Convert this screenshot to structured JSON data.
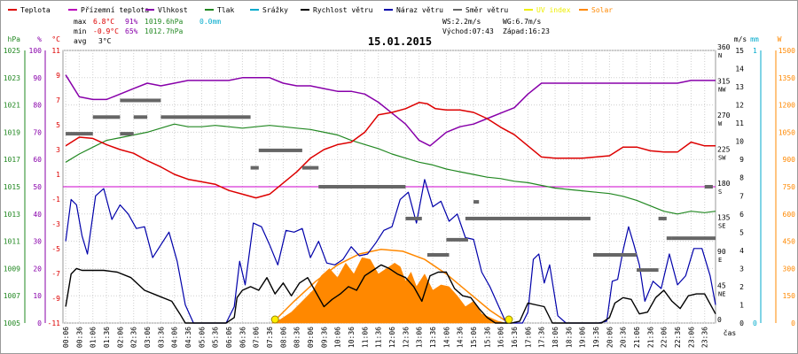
{
  "chart_data": {
    "type": "line",
    "title": "15.01.2015",
    "xlabel": "čas",
    "legend": [
      {
        "label": "Teplota",
        "color": "#dd0000"
      },
      {
        "label": "Přízemní teplota",
        "color": "#bb00bb"
      },
      {
        "label": "Vlhkost",
        "color": "#8800aa"
      },
      {
        "label": "Tlak",
        "color": "#228822"
      },
      {
        "label": "Srážky",
        "color": "#00aacc"
      },
      {
        "label": "Rychlost větru",
        "color": "#000000"
      },
      {
        "label": "Náraz větru",
        "color": "#0000aa"
      },
      {
        "label": "Směr větru",
        "color": "#666666"
      },
      {
        "label": "UV index",
        "color": "#eeee00"
      },
      {
        "label": "Solar",
        "color": "#ff8800"
      }
    ],
    "stats": {
      "max": {
        "label": "max",
        "temp": "6.8°C",
        "hum": "91%",
        "press": "1019.6hPa",
        "rain": "0.0mm"
      },
      "min": {
        "label": "min",
        "temp": "-0.9°C",
        "hum": "65%",
        "press": "1012.7hPa"
      },
      "avg": {
        "label": "avg",
        "temp": "3°C"
      },
      "ws": "WS:2.2m/s",
      "wg": "WG:6.7m/s",
      "sunrise": "Východ:07:43",
      "sunset": "Západ:16:23"
    },
    "axes": {
      "hpa": {
        "unit": "hPa",
        "ticks": [
          "1005",
          "1007",
          "1009",
          "1011",
          "1013",
          "1015",
          "1017",
          "1019",
          "1021",
          "1023",
          "1025"
        ],
        "ylim": [
          1005,
          1025
        ]
      },
      "percent": {
        "unit": "%",
        "ticks": [
          "0",
          "10",
          "20",
          "30",
          "40",
          "50",
          "60",
          "70",
          "80",
          "90",
          "100"
        ],
        "ylim": [
          0,
          100
        ]
      },
      "temp": {
        "unit": "°C",
        "ticks": [
          "-11",
          "-9",
          "-7",
          "-5",
          "-3",
          "-1",
          "1",
          "3",
          "5",
          "7",
          "9",
          "11"
        ],
        "ylim": [
          -11,
          11
        ]
      },
      "dir": {
        "unit": "°",
        "ticks": [
          {
            "deg": "0",
            "c": ""
          },
          {
            "deg": "45",
            "c": "NE"
          },
          {
            "deg": "90",
            "c": "E"
          },
          {
            "deg": "135",
            "c": "SE"
          },
          {
            "deg": "180",
            "c": "S"
          },
          {
            "deg": "225",
            "c": "SW"
          },
          {
            "deg": "270",
            "c": "W"
          },
          {
            "deg": "315",
            "c": "NW"
          },
          {
            "deg": "360",
            "c": "N"
          }
        ],
        "ylim": [
          0,
          360
        ]
      },
      "ms": {
        "unit": "m/s",
        "ticks": [
          "0",
          "1",
          "2",
          "3",
          "4",
          "5",
          "6",
          "7",
          "8",
          "9",
          "10",
          "11",
          "12",
          "13",
          "14",
          "15"
        ],
        "ylim": [
          0,
          15
        ]
      },
      "mm": {
        "unit": "mm",
        "ticks": [
          "0",
          "1"
        ],
        "ylim": [
          0,
          1
        ]
      },
      "w": {
        "unit": "W",
        "ticks": [
          "0",
          "150",
          "300",
          "450",
          "600",
          "750",
          "900",
          "1050",
          "1200",
          "1350",
          "1500"
        ],
        "ylim": [
          0,
          1500
        ]
      }
    },
    "x_ticks": [
      "00:06",
      "00:36",
      "01:06",
      "01:36",
      "02:06",
      "02:36",
      "03:06",
      "03:36",
      "04:06",
      "04:36",
      "05:06",
      "05:36",
      "06:06",
      "06:36",
      "07:06",
      "07:36",
      "08:06",
      "08:36",
      "09:06",
      "09:36",
      "10:06",
      "10:36",
      "11:06",
      "11:36",
      "12:06",
      "12:36",
      "13:06",
      "13:36",
      "14:06",
      "14:36",
      "15:06",
      "15:36",
      "16:06",
      "16:36",
      "17:06",
      "17:36",
      "18:06",
      "18:36",
      "19:06",
      "19:36",
      "20:06",
      "20:36",
      "21:06",
      "21:36",
      "22:06",
      "22:36",
      "23:06",
      "23:36"
    ],
    "series": [
      {
        "name": "Teplota",
        "unit": "°C",
        "x": [
          0.1,
          0.6,
          1.1,
          1.6,
          2.1,
          2.6,
          3.1,
          3.6,
          4.1,
          4.6,
          5.1,
          5.6,
          6.1,
          6.6,
          7.1,
          7.6,
          8.1,
          8.6,
          9.1,
          9.6,
          10.1,
          10.6,
          11.1,
          11.6,
          12.1,
          12.6,
          13.1,
          13.4,
          13.7,
          14.1,
          14.6,
          15.1,
          15.6,
          16.1,
          16.6,
          17.1,
          17.6,
          18.1,
          18.6,
          19.1,
          19.6,
          20.1,
          20.6,
          21.1,
          21.6,
          22.1,
          22.6,
          23.1,
          23.6,
          24.0
        ],
        "values": [
          3.3,
          4.0,
          3.9,
          3.4,
          3.0,
          2.7,
          2.1,
          1.6,
          1.0,
          0.6,
          0.4,
          0.2,
          -0.3,
          -0.6,
          -0.9,
          -0.6,
          0.3,
          1.2,
          2.3,
          3.0,
          3.4,
          3.6,
          4.4,
          5.8,
          6.0,
          6.3,
          6.8,
          6.7,
          6.3,
          6.2,
          6.2,
          6.0,
          5.5,
          4.8,
          4.2,
          3.3,
          2.4,
          2.3,
          2.3,
          2.3,
          2.4,
          2.5,
          3.2,
          3.2,
          2.9,
          2.8,
          2.8,
          3.6,
          3.3,
          3.3
        ]
      },
      {
        "name": "Přízemní teplota",
        "unit": "°C",
        "x": [
          0,
          24
        ],
        "values": [
          0,
          0
        ]
      },
      {
        "name": "Vlhkost",
        "unit": "%",
        "x": [
          0.1,
          0.6,
          1.1,
          1.6,
          2.1,
          2.6,
          3.1,
          3.6,
          4.1,
          4.6,
          5.1,
          5.6,
          6.1,
          6.6,
          7.1,
          7.6,
          8.1,
          8.6,
          9.1,
          9.6,
          10.1,
          10.6,
          11.1,
          11.6,
          12.1,
          12.6,
          13.1,
          13.5,
          14.1,
          14.6,
          15.1,
          15.6,
          16.1,
          16.6,
          17.1,
          17.6,
          18.1,
          18.6,
          19.1,
          19.6,
          20.1,
          20.6,
          21.1,
          21.6,
          22.1,
          22.6,
          23.1,
          23.6,
          24.0
        ],
        "values": [
          91,
          83,
          82,
          82,
          84,
          86,
          88,
          87,
          88,
          89,
          89,
          89,
          89,
          90,
          90,
          90,
          88,
          87,
          87,
          86,
          85,
          85,
          84,
          81,
          77,
          73,
          67,
          65,
          70,
          72,
          73,
          75,
          77,
          79,
          84,
          88,
          88,
          88,
          88,
          88,
          88,
          88,
          88,
          88,
          88,
          88,
          89,
          89,
          89
        ]
      },
      {
        "name": "Tlak",
        "unit": "hPa",
        "x": [
          0.1,
          0.6,
          1.1,
          1.6,
          2.1,
          2.6,
          3.1,
          3.6,
          4.1,
          4.6,
          5.1,
          5.6,
          6.1,
          6.6,
          7.1,
          7.6,
          8.1,
          8.6,
          9.1,
          9.6,
          10.1,
          10.6,
          11.1,
          11.6,
          12.1,
          12.6,
          13.1,
          13.6,
          14.1,
          14.6,
          15.1,
          15.6,
          16.1,
          16.6,
          17.1,
          17.6,
          18.1,
          18.6,
          19.1,
          19.6,
          20.1,
          20.6,
          21.1,
          21.6,
          22.1,
          22.6,
          23.1,
          23.6,
          24.0
        ],
        "values": [
          1016.8,
          1017.4,
          1017.9,
          1018.4,
          1018.6,
          1018.8,
          1019.0,
          1019.3,
          1019.6,
          1019.4,
          1019.4,
          1019.5,
          1019.4,
          1019.3,
          1019.4,
          1019.5,
          1019.4,
          1019.3,
          1019.2,
          1019.0,
          1018.8,
          1018.4,
          1018.1,
          1017.8,
          1017.4,
          1017.1,
          1016.8,
          1016.6,
          1016.3,
          1016.1,
          1015.9,
          1015.7,
          1015.6,
          1015.4,
          1015.3,
          1015.1,
          1014.9,
          1014.8,
          1014.7,
          1014.6,
          1014.5,
          1014.3,
          1014.0,
          1013.6,
          1013.2,
          1013.0,
          1013.2,
          1013.1,
          1013.2
        ]
      },
      {
        "name": "Srážky",
        "unit": "mm",
        "x": [
          0,
          24
        ],
        "values": [
          0,
          0
        ]
      },
      {
        "name": "Rychlost větru",
        "unit": "m/s",
        "x": [
          0.1,
          0.3,
          0.5,
          0.7,
          1.0,
          1.5,
          2.0,
          2.5,
          3.0,
          3.5,
          4.0,
          4.3,
          4.5,
          5.0,
          5.5,
          6.0,
          6.3,
          6.4,
          6.6,
          6.9,
          7.2,
          7.5,
          7.8,
          8.1,
          8.4,
          8.7,
          9.0,
          9.3,
          9.6,
          9.9,
          10.2,
          10.5,
          10.8,
          11.1,
          11.4,
          11.7,
          12.0,
          12.3,
          12.6,
          12.9,
          13.2,
          13.5,
          13.8,
          14.1,
          14.4,
          14.7,
          15.0,
          15.3,
          15.6,
          15.9,
          16.2,
          16.5,
          16.8,
          17.1,
          17.4,
          17.7,
          18.0,
          18.3,
          18.6,
          18.9,
          19.2,
          19.5,
          19.8,
          20.1,
          20.3,
          20.6,
          20.9,
          21.2,
          21.5,
          21.8,
          22.1,
          22.4,
          22.7,
          23.0,
          23.3,
          23.6,
          24.0
        ],
        "values": [
          0.9,
          2.7,
          3.0,
          2.9,
          2.9,
          2.9,
          2.8,
          2.5,
          1.8,
          1.5,
          1.2,
          0.5,
          0.0,
          0.0,
          0.0,
          0.0,
          0.3,
          1.4,
          1.8,
          2.0,
          1.8,
          2.5,
          1.6,
          2.2,
          1.5,
          2.2,
          2.5,
          1.7,
          0.9,
          1.3,
          1.6,
          2.0,
          1.8,
          2.6,
          2.9,
          3.2,
          3.0,
          2.7,
          2.5,
          2.0,
          1.2,
          2.6,
          2.8,
          2.8,
          1.9,
          1.5,
          1.4,
          0.8,
          0.3,
          0.0,
          0.0,
          0.0,
          0.1,
          1.1,
          1.0,
          0.9,
          0.0,
          0.0,
          0.0,
          0.0,
          0.0,
          0.0,
          0.0,
          0.3,
          1.1,
          1.4,
          1.3,
          0.5,
          0.6,
          1.4,
          1.8,
          1.2,
          0.8,
          1.5,
          1.6,
          1.6,
          0.5
        ]
      },
      {
        "name": "Náraz větru",
        "unit": "m/s",
        "x": [
          0.1,
          0.3,
          0.5,
          0.7,
          0.9,
          1.2,
          1.5,
          1.8,
          2.1,
          2.4,
          2.7,
          3.0,
          3.3,
          3.6,
          3.9,
          4.2,
          4.5,
          4.8,
          5.5,
          6.0,
          6.3,
          6.5,
          6.7,
          7.0,
          7.3,
          7.6,
          7.9,
          8.2,
          8.5,
          8.8,
          9.1,
          9.4,
          9.7,
          10.0,
          10.3,
          10.6,
          10.9,
          11.2,
          11.5,
          11.8,
          12.1,
          12.4,
          12.7,
          13.0,
          13.3,
          13.6,
          13.9,
          14.2,
          14.5,
          14.8,
          15.1,
          15.4,
          15.7,
          16.0,
          16.3,
          16.6,
          16.9,
          17.1,
          17.3,
          17.5,
          17.7,
          17.9,
          18.2,
          18.5,
          18.8,
          19.1,
          19.4,
          19.7,
          20.0,
          20.2,
          20.4,
          20.6,
          20.8,
          21.0,
          21.2,
          21.4,
          21.7,
          22.0,
          22.3,
          22.6,
          22.9,
          23.2,
          23.5,
          23.8,
          24.0
        ],
        "values": [
          4.5,
          6.8,
          6.5,
          4.8,
          3.8,
          7.0,
          7.4,
          5.7,
          6.5,
          6.0,
          5.2,
          5.3,
          3.6,
          4.3,
          5.0,
          3.4,
          1.0,
          0.0,
          0.0,
          0.0,
          0.9,
          3.4,
          2.1,
          5.5,
          5.3,
          4.3,
          3.2,
          5.1,
          5.0,
          5.2,
          3.6,
          4.5,
          3.3,
          3.2,
          3.5,
          4.2,
          3.7,
          3.8,
          4.4,
          5.1,
          5.3,
          6.8,
          7.2,
          5.5,
          7.9,
          6.4,
          6.7,
          5.6,
          6.0,
          4.7,
          4.6,
          2.8,
          2.0,
          1.0,
          0.0,
          0.0,
          0.0,
          0.6,
          3.5,
          3.8,
          2.2,
          3.2,
          0.4,
          0.0,
          0.0,
          0.0,
          0.0,
          0.0,
          0.1,
          2.3,
          2.4,
          4.0,
          5.3,
          4.3,
          3.2,
          1.2,
          2.3,
          1.9,
          3.8,
          2.1,
          2.6,
          4.1,
          4.1,
          2.6,
          1.0
        ]
      },
      {
        "name": "Směr větru",
        "unit": "°",
        "segments": [
          {
            "x0": 0.1,
            "x1": 1.1,
            "v": 250
          },
          {
            "x0": 1.1,
            "x1": 2.1,
            "v": 272
          },
          {
            "x0": 2.1,
            "x1": 3.6,
            "v": 294
          },
          {
            "x0": 3.6,
            "x1": 6.9,
            "v": 272
          },
          {
            "x0": 2.1,
            "x1": 2.6,
            "v": 250
          },
          {
            "x0": 2.6,
            "x1": 3.1,
            "v": 272
          },
          {
            "x0": 6.9,
            "x1": 7.2,
            "v": 205
          },
          {
            "x0": 7.2,
            "x1": 8.8,
            "v": 228
          },
          {
            "x0": 8.8,
            "x1": 9.4,
            "v": 205
          },
          {
            "x0": 9.4,
            "x1": 12.6,
            "v": 180
          },
          {
            "x0": 12.6,
            "x1": 13.2,
            "v": 138
          },
          {
            "x0": 14.8,
            "x1": 15.0,
            "v": 138
          },
          {
            "x0": 15.0,
            "x1": 19.4,
            "v": 138
          },
          {
            "x0": 13.4,
            "x1": 14.2,
            "v": 90
          },
          {
            "x0": 14.1,
            "x1": 14.9,
            "v": 110
          },
          {
            "x0": 15.1,
            "x1": 15.3,
            "v": 160
          },
          {
            "x0": 19.5,
            "x1": 21.1,
            "v": 90
          },
          {
            "x0": 21.1,
            "x1": 21.9,
            "v": 70
          },
          {
            "x0": 21.9,
            "x1": 22.2,
            "v": 138
          },
          {
            "x0": 22.2,
            "x1": 22.4,
            "v": 112
          },
          {
            "x0": 22.4,
            "x1": 24.0,
            "v": 112
          },
          {
            "x0": 23.6,
            "x1": 23.9,
            "v": 180
          }
        ]
      },
      {
        "name": "UV index",
        "unit": "",
        "x": [
          7.8,
          16.4
        ],
        "values": [
          0,
          0
        ]
      },
      {
        "name": "Solar",
        "unit": "W/m²",
        "x": [
          7.7,
          8.0,
          8.4,
          8.8,
          9.2,
          9.5,
          9.8,
          10.1,
          10.4,
          10.7,
          11.0,
          11.3,
          11.6,
          11.9,
          12.2,
          12.4,
          12.6,
          12.8,
          13.0,
          13.3,
          13.6,
          13.9,
          14.2,
          14.5,
          14.8,
          15.1,
          15.4,
          15.7,
          16.0,
          16.3
        ],
        "values": [
          0,
          20,
          60,
          120,
          180,
          260,
          300,
          250,
          330,
          270,
          360,
          350,
          270,
          300,
          330,
          310,
          230,
          280,
          200,
          270,
          180,
          210,
          200,
          150,
          90,
          120,
          50,
          30,
          10,
          0
        ]
      },
      {
        "name": "Solar theoretical",
        "unit": "W/m²",
        "x": [
          7.7,
          8.5,
          9.3,
          10.1,
          10.9,
          11.7,
          12.5,
          13.3,
          14.1,
          14.9,
          15.7,
          16.4
        ],
        "values": [
          0,
          120,
          230,
          320,
          380,
          405,
          395,
          350,
          270,
          170,
          70,
          0
        ]
      }
    ]
  }
}
